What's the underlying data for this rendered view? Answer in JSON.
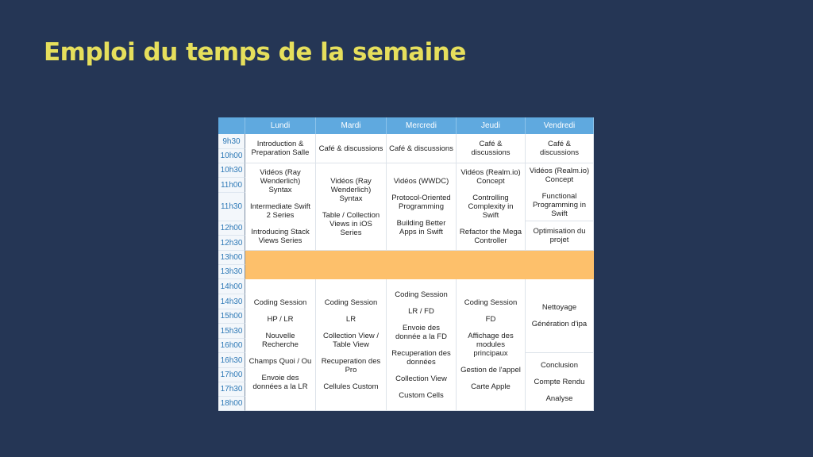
{
  "title": "Emploi du temps de la semaine",
  "days": [
    "Lundi",
    "Mardi",
    "Mercredi",
    "Jeudi",
    "Vendredi"
  ],
  "times": [
    "9h30",
    "10h00",
    "10h30",
    "11h00",
    "11h30",
    "12h00",
    "12h30",
    "13h00",
    "13h30",
    "14h00",
    "14h30",
    "15h00",
    "15h30",
    "16h00",
    "16h30",
    "17h00",
    "17h30",
    "18h00"
  ],
  "colors": {
    "background": "#253655",
    "title": "#e6df5c",
    "header": "#5fa9df",
    "time_text": "#2c78b6",
    "lunch": "#fdc06b"
  },
  "cells": {
    "lundi_early": [
      "Introduction & Preparation Salle"
    ],
    "mardi_early": [
      "Café & discussions"
    ],
    "mercredi_early": [
      "Café & discussions"
    ],
    "jeudi_early": [
      "Café & discussions"
    ],
    "vendredi_early": [
      "Café & discussions"
    ],
    "lundi_morning": [
      "Vidéos (Ray Wenderlich) Syntax",
      "Intermediate Swift 2 Series",
      "Introducing Stack Views Series"
    ],
    "mardi_morning": [
      "Vidéos (Ray Wenderlich) Syntax",
      "Table / Collection Views in iOS Series"
    ],
    "mercredi_morning": [
      "Vidéos (WWDC)",
      "Protocol-Oriented Programming",
      "Building Better Apps in Swift"
    ],
    "jeudi_morning": [
      "Vidéos (Realm.io) Concept",
      "Controlling Complexity in Swift",
      "Refactor the Mega Controller"
    ],
    "vendredi_morning_1": [
      "Vidéos (Realm.io) Concept",
      "Functional Programming in Swift"
    ],
    "vendredi_morning_2": [
      "Optimisation du projet"
    ],
    "lundi_afternoon": [
      "Coding Session",
      "HP / LR",
      "Nouvelle Recherche",
      "Champs Quoi / Ou",
      "Envoie des données a la LR"
    ],
    "mardi_afternoon": [
      "Coding Session",
      "LR",
      "Collection View / Table View",
      "Recuperation des Pro",
      "Cellules Custom"
    ],
    "mercredi_afternoon": [
      "Coding Session",
      "LR / FD",
      "Envoie des donnée a la FD",
      "Recuperation des données",
      "Collection View",
      "Custom Cells"
    ],
    "jeudi_afternoon": [
      "Coding Session",
      "FD",
      "Affichage des modules principaux",
      "Gestion de l'appel",
      "Carte Apple"
    ],
    "vendredi_afternoon_1": [
      "Nettoyage",
      "Génération d'ipa"
    ],
    "vendredi_afternoon_2": [
      "Conclusion",
      "Compte Rendu",
      "Analyse"
    ]
  }
}
